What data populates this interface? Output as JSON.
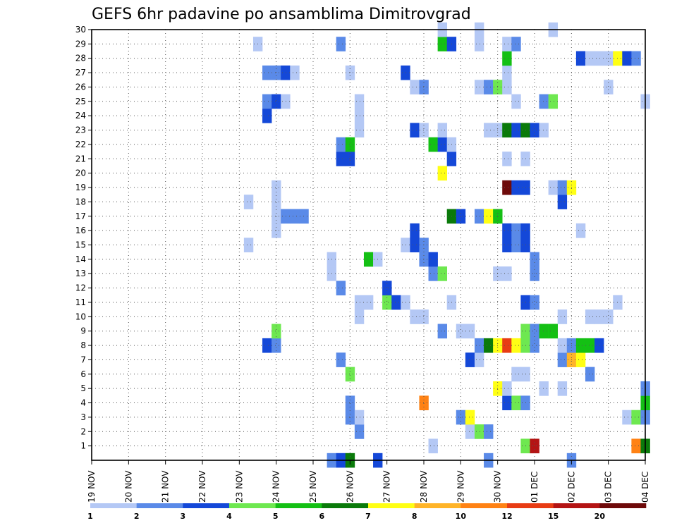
{
  "chart_data": {
    "type": "heatmap",
    "title": "GEFS 6hr padavine po ansamblima Dimitrovgrad",
    "x_ticks": [
      "19 NOV",
      "20 NOV",
      "21 NOV",
      "22 NOV",
      "23 NOV",
      "24 NOV",
      "25 NOV",
      "26 NOV",
      "27 NOV",
      "28 NOV",
      "29 NOV",
      "30 NOV",
      "01 DEC",
      "02 DEC",
      "03 DEC",
      "04 DEC"
    ],
    "x_step_hours": 6,
    "n_steps": 60,
    "y_ticks": [
      "1",
      "2",
      "3",
      "4",
      "5",
      "6",
      "7",
      "8",
      "9",
      "10",
      "11",
      "12",
      "13",
      "14",
      "15",
      "16",
      "17",
      "18",
      "19",
      "20",
      "21",
      "22",
      "23",
      "24",
      "25",
      "26",
      "27",
      "28",
      "29",
      "30"
    ],
    "y_range": [
      0,
      30
    ],
    "grid": true,
    "legend_labels": [
      "1",
      "2",
      "3",
      "4",
      "5",
      "6",
      "7",
      "8",
      "10",
      "12",
      "15",
      "20"
    ],
    "legend_colors": [
      "#b4c8f5",
      "#5a8ae8",
      "#1448d8",
      "#6ee850",
      "#14c014",
      "#0a7a0a",
      "#ffff14",
      "#ffb428",
      "#ff8214",
      "#e83c14",
      "#b41414",
      "#6e0a0a"
    ],
    "cells": [
      [
        26,
        0,
        1
      ],
      [
        27,
        0,
        2
      ],
      [
        28,
        0,
        5
      ],
      [
        31,
        0,
        2
      ],
      [
        43,
        0,
        1
      ],
      [
        52,
        0,
        1
      ],
      [
        37,
        1,
        0
      ],
      [
        47,
        1,
        3
      ],
      [
        48,
        1,
        10
      ],
      [
        59,
        1,
        8
      ],
      [
        60,
        1,
        5
      ],
      [
        29,
        2,
        1
      ],
      [
        41,
        2,
        0
      ],
      [
        42,
        2,
        3
      ],
      [
        43,
        2,
        1
      ],
      [
        28,
        3,
        1
      ],
      [
        29,
        3,
        0
      ],
      [
        40,
        3,
        1
      ],
      [
        41,
        3,
        6
      ],
      [
        58,
        3,
        0
      ],
      [
        59,
        3,
        3
      ],
      [
        60,
        3,
        1
      ],
      [
        28,
        4,
        1
      ],
      [
        36,
        4,
        8
      ],
      [
        45,
        4,
        2
      ],
      [
        46,
        4,
        3
      ],
      [
        47,
        4,
        1
      ],
      [
        60,
        4,
        4
      ],
      [
        44,
        5,
        6
      ],
      [
        45,
        5,
        0
      ],
      [
        49,
        5,
        0
      ],
      [
        51,
        5,
        0
      ],
      [
        60,
        5,
        1
      ],
      [
        28,
        6,
        3
      ],
      [
        46,
        6,
        0
      ],
      [
        47,
        6,
        0
      ],
      [
        54,
        6,
        1
      ],
      [
        27,
        7,
        1
      ],
      [
        41,
        7,
        2
      ],
      [
        42,
        7,
        0
      ],
      [
        51,
        7,
        1
      ],
      [
        52,
        7,
        7
      ],
      [
        53,
        7,
        6
      ],
      [
        19,
        8,
        2
      ],
      [
        20,
        8,
        1
      ],
      [
        42,
        8,
        1
      ],
      [
        43,
        8,
        5
      ],
      [
        44,
        8,
        6
      ],
      [
        45,
        8,
        9
      ],
      [
        46,
        8,
        6
      ],
      [
        47,
        8,
        3
      ],
      [
        48,
        8,
        1
      ],
      [
        51,
        8,
        0
      ],
      [
        52,
        8,
        1
      ],
      [
        53,
        8,
        4
      ],
      [
        54,
        8,
        4
      ],
      [
        55,
        8,
        2
      ],
      [
        20,
        9,
        3
      ],
      [
        38,
        9,
        1
      ],
      [
        40,
        9,
        0
      ],
      [
        41,
        9,
        0
      ],
      [
        47,
        9,
        3
      ],
      [
        48,
        9,
        1
      ],
      [
        49,
        9,
        4
      ],
      [
        50,
        9,
        4
      ],
      [
        29,
        10,
        0
      ],
      [
        35,
        10,
        0
      ],
      [
        36,
        10,
        0
      ],
      [
        51,
        10,
        0
      ],
      [
        54,
        10,
        0
      ],
      [
        55,
        10,
        0
      ],
      [
        56,
        10,
        0
      ],
      [
        29,
        11,
        0
      ],
      [
        30,
        11,
        0
      ],
      [
        32,
        11,
        3
      ],
      [
        33,
        11,
        2
      ],
      [
        34,
        11,
        0
      ],
      [
        39,
        11,
        0
      ],
      [
        47,
        11,
        2
      ],
      [
        48,
        11,
        1
      ],
      [
        57,
        11,
        0
      ],
      [
        27,
        12,
        1
      ],
      [
        32,
        12,
        2
      ],
      [
        26,
        13,
        0
      ],
      [
        37,
        13,
        1
      ],
      [
        38,
        13,
        3
      ],
      [
        44,
        13,
        0
      ],
      [
        45,
        13,
        0
      ],
      [
        48,
        13,
        1
      ],
      [
        26,
        14,
        0
      ],
      [
        30,
        14,
        4
      ],
      [
        31,
        14,
        0
      ],
      [
        36,
        14,
        1
      ],
      [
        37,
        14,
        2
      ],
      [
        48,
        14,
        1
      ],
      [
        17,
        15,
        0
      ],
      [
        34,
        15,
        0
      ],
      [
        35,
        15,
        2
      ],
      [
        36,
        15,
        1
      ],
      [
        45,
        15,
        2
      ],
      [
        46,
        15,
        1
      ],
      [
        47,
        15,
        2
      ],
      [
        20,
        16,
        0
      ],
      [
        35,
        16,
        2
      ],
      [
        45,
        16,
        2
      ],
      [
        46,
        16,
        1
      ],
      [
        47,
        16,
        2
      ],
      [
        53,
        16,
        0
      ],
      [
        20,
        17,
        0
      ],
      [
        21,
        17,
        1
      ],
      [
        22,
        17,
        1
      ],
      [
        23,
        17,
        1
      ],
      [
        39,
        17,
        5
      ],
      [
        40,
        17,
        2
      ],
      [
        42,
        17,
        1
      ],
      [
        43,
        17,
        6
      ],
      [
        44,
        17,
        4
      ],
      [
        17,
        18,
        0
      ],
      [
        20,
        18,
        0
      ],
      [
        51,
        18,
        2
      ],
      [
        20,
        19,
        0
      ],
      [
        45,
        19,
        11
      ],
      [
        46,
        19,
        2
      ],
      [
        47,
        19,
        2
      ],
      [
        50,
        19,
        0
      ],
      [
        51,
        19,
        1
      ],
      [
        52,
        19,
        6
      ],
      [
        38,
        20,
        6
      ],
      [
        27,
        21,
        2
      ],
      [
        28,
        21,
        2
      ],
      [
        39,
        21,
        2
      ],
      [
        45,
        21,
        0
      ],
      [
        47,
        21,
        0
      ],
      [
        27,
        22,
        1
      ],
      [
        28,
        22,
        4
      ],
      [
        37,
        22,
        4
      ],
      [
        38,
        22,
        2
      ],
      [
        39,
        22,
        0
      ],
      [
        29,
        23,
        0
      ],
      [
        35,
        23,
        2
      ],
      [
        36,
        23,
        0
      ],
      [
        38,
        23,
        0
      ],
      [
        43,
        23,
        0
      ],
      [
        44,
        23,
        0
      ],
      [
        45,
        23,
        5
      ],
      [
        46,
        23,
        2
      ],
      [
        47,
        23,
        5
      ],
      [
        48,
        23,
        2
      ],
      [
        49,
        23,
        0
      ],
      [
        19,
        24,
        2
      ],
      [
        29,
        24,
        0
      ],
      [
        19,
        25,
        1
      ],
      [
        20,
        25,
        2
      ],
      [
        21,
        25,
        0
      ],
      [
        29,
        25,
        0
      ],
      [
        46,
        25,
        0
      ],
      [
        49,
        25,
        1
      ],
      [
        50,
        25,
        3
      ],
      [
        60,
        25,
        0
      ],
      [
        35,
        26,
        0
      ],
      [
        36,
        26,
        1
      ],
      [
        42,
        26,
        0
      ],
      [
        43,
        26,
        1
      ],
      [
        44,
        26,
        3
      ],
      [
        45,
        26,
        0
      ],
      [
        56,
        26,
        0
      ],
      [
        19,
        27,
        1
      ],
      [
        20,
        27,
        1
      ],
      [
        21,
        27,
        2
      ],
      [
        22,
        27,
        0
      ],
      [
        28,
        27,
        0
      ],
      [
        34,
        27,
        2
      ],
      [
        45,
        27,
        0
      ],
      [
        45,
        28,
        4
      ],
      [
        53,
        28,
        2
      ],
      [
        54,
        28,
        0
      ],
      [
        55,
        28,
        0
      ],
      [
        56,
        28,
        0
      ],
      [
        57,
        28,
        6
      ],
      [
        58,
        28,
        2
      ],
      [
        59,
        28,
        1
      ],
      [
        18,
        29,
        0
      ],
      [
        27,
        29,
        1
      ],
      [
        38,
        29,
        4
      ],
      [
        39,
        29,
        2
      ],
      [
        42,
        29,
        0
      ],
      [
        45,
        29,
        0
      ],
      [
        46,
        29,
        1
      ],
      [
        38,
        30,
        0
      ],
      [
        42,
        30,
        0
      ],
      [
        50,
        30,
        0
      ]
    ]
  }
}
